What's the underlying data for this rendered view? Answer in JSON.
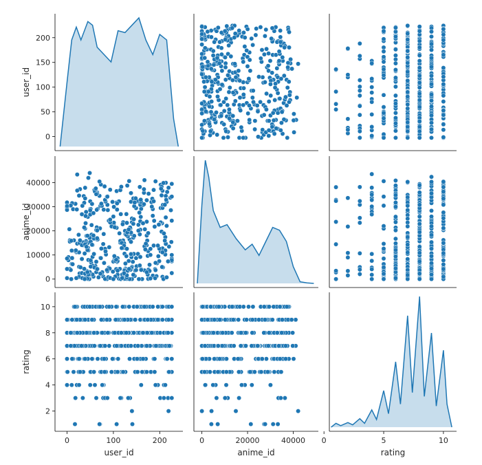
{
  "chart_data": {
    "type": "pairplot",
    "variables": [
      "user_id",
      "anime_id",
      "rating"
    ],
    "axis_labels": {
      "user_id": "user_id",
      "anime_id": "anime_id",
      "rating": "rating"
    },
    "ranges": {
      "user_id": [
        -26,
        250
      ],
      "anime_id": [
        -3500,
        51000
      ],
      "rating": [
        0.45,
        11.1
      ]
    },
    "ticks": {
      "user_id": [
        0,
        50,
        100,
        150,
        200
      ],
      "anime_id": [
        0,
        10000,
        20000,
        30000,
        40000
      ],
      "rating": [
        2,
        4,
        6,
        8,
        10
      ]
    },
    "tick_labels": {
      "user_id_x": [
        "0",
        "100",
        "200"
      ],
      "user_id_x_values": [
        0,
        100,
        200
      ],
      "user_id_y": [
        "0",
        "50",
        "100",
        "150",
        "200"
      ],
      "anime_id_x": [
        "0",
        "20000",
        "40000"
      ],
      "anime_id_x_values": [
        0,
        20000,
        40000
      ],
      "anime_id_y": [
        "0",
        "10000",
        "20000",
        "30000",
        "40000"
      ],
      "rating_x": [
        "0",
        "5",
        "10"
      ],
      "rating_x_values": [
        0,
        5,
        10
      ],
      "rating_y": [
        "2",
        "4",
        "6",
        "8",
        "10"
      ]
    },
    "rating_levels": [
      1,
      2,
      3,
      4,
      5,
      6,
      7,
      8,
      9,
      10
    ],
    "kde": {
      "user_id": {
        "x": [
          -15,
          0,
          10,
          20,
          30,
          45,
          55,
          65,
          80,
          95,
          110,
          125,
          140,
          155,
          170,
          185,
          200,
          215,
          230,
          240
        ],
        "y": [
          0,
          0.0035,
          0.0058,
          0.0065,
          0.0058,
          0.0068,
          0.0066,
          0.0054,
          0.005,
          0.0046,
          0.0063,
          0.0062,
          0.0066,
          0.007,
          0.0058,
          0.005,
          0.0061,
          0.0058,
          0.0015,
          0
        ]
      },
      "anime_id": {
        "x": [
          -2000,
          0,
          1500,
          3000,
          5000,
          8000,
          11000,
          15000,
          19000,
          22000,
          25000,
          28000,
          31000,
          34000,
          37000,
          40000,
          43000,
          46000,
          49000
        ],
        "y": [
          0,
          2.8e-05,
          4.4e-05,
          3.8e-05,
          2.6e-05,
          2e-05,
          2.1e-05,
          1.6e-05,
          1.2e-05,
          1.4e-05,
          1e-05,
          1.5e-05,
          2e-05,
          1.9e-05,
          1.5e-05,
          6e-06,
          6e-07,
          2e-07,
          0
        ]
      },
      "rating": {
        "x": [
          0.6,
          1.0,
          1.4,
          2.0,
          2.4,
          3.0,
          3.4,
          4.0,
          4.4,
          5.0,
          5.4,
          6.0,
          6.4,
          7.0,
          7.4,
          8.0,
          8.4,
          9.0,
          9.4,
          10.0,
          10.3,
          10.7
        ],
        "y": [
          0,
          0.01,
          0.004,
          0.012,
          0.006,
          0.022,
          0.01,
          0.045,
          0.02,
          0.095,
          0.035,
          0.17,
          0.06,
          0.29,
          0.09,
          0.34,
          0.08,
          0.245,
          0.055,
          0.2,
          0.06,
          0
        ]
      }
    },
    "marker_color": "#1f77b4",
    "fill_color": "#1f77b4",
    "edge_color": "#ffffff",
    "grid": false,
    "legend": "none"
  }
}
